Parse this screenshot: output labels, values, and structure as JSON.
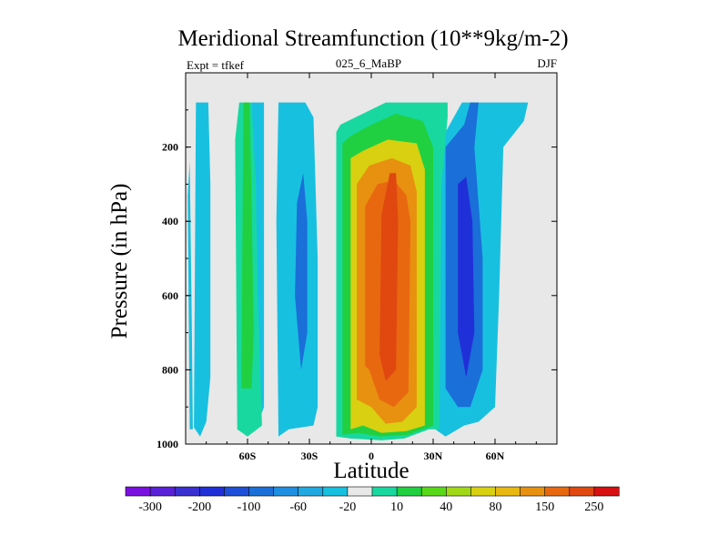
{
  "chart_data": {
    "type": "contour",
    "title": "Meridional Streamfunction (10**9kg/m-2)",
    "left_label": "Expt = tfkef",
    "center_label": "025_6_MaBP",
    "right_label": "DJF",
    "xlabel": "Latitude",
    "ylabel": "Pressure (in hPa)",
    "xlim": [
      -90,
      90
    ],
    "ylim": [
      1000,
      0
    ],
    "x_ticks": [
      {
        "value": -60,
        "label": "60S"
      },
      {
        "value": -30,
        "label": "30S"
      },
      {
        "value": 0,
        "label": "0"
      },
      {
        "value": 30,
        "label": "30N"
      },
      {
        "value": 60,
        "label": "60N"
      }
    ],
    "y_ticks": [
      {
        "value": 200,
        "label": "200"
      },
      {
        "value": 400,
        "label": "400"
      },
      {
        "value": 600,
        "label": "600"
      },
      {
        "value": 800,
        "label": "800"
      },
      {
        "value": 1000,
        "label": "1000"
      }
    ],
    "missing_color": "#e8e8e8",
    "colorbar": {
      "colors": [
        "#7a10e0",
        "#5a20d8",
        "#3a2fd0",
        "#2030d8",
        "#1e4fd8",
        "#1a6fd8",
        "#1e8fe0",
        "#20a8e0",
        "#18c0e0",
        "#e8e8e8",
        "#18d8a0",
        "#20d040",
        "#58d818",
        "#a0d818",
        "#d8d010",
        "#e8b810",
        "#e89010",
        "#e86810",
        "#e04810",
        "#d81010"
      ],
      "labels": [
        "-300",
        "-200",
        "-100",
        "-60",
        "-20",
        "10",
        "40",
        "80",
        "150",
        "250"
      ]
    },
    "regions": [
      {
        "level": "-20",
        "points": [
          [
            -86,
            955
          ],
          [
            -85,
            80
          ],
          [
            -79,
            80
          ],
          [
            -78,
            300
          ],
          [
            -78,
            820
          ],
          [
            -80,
            940
          ],
          [
            -83,
            980
          ]
        ]
      },
      {
        "level": "-20",
        "points": [
          [
            -88,
            960
          ],
          [
            -89,
            330
          ],
          [
            -88,
            240
          ],
          [
            -87,
            680
          ],
          [
            -86.5,
            960
          ]
        ]
      },
      {
        "level": "-20",
        "points": [
          [
            -59,
            860
          ],
          [
            -60,
            600
          ],
          [
            -58,
            80
          ],
          [
            -52,
            80
          ],
          [
            -52,
            900
          ],
          [
            -56,
            960
          ]
        ]
      },
      {
        "level": "-20",
        "points": [
          [
            -45,
            980
          ],
          [
            -46,
            400
          ],
          [
            -45,
            80
          ],
          [
            -32,
            80
          ],
          [
            -28,
            120
          ],
          [
            -26,
            500
          ],
          [
            -26,
            900
          ],
          [
            -28,
            950
          ],
          [
            -40,
            960
          ]
        ]
      },
      {
        "level": "-20",
        "points": [
          [
            31,
            960
          ],
          [
            32,
            200
          ],
          [
            44,
            80
          ],
          [
            76,
            80
          ],
          [
            74,
            130
          ],
          [
            64,
            200
          ],
          [
            62,
            600
          ],
          [
            60,
            900
          ],
          [
            52,
            940
          ],
          [
            45,
            950
          ],
          [
            36,
            980
          ]
        ]
      },
      {
        "level": "-60",
        "points": [
          [
            -37,
            600
          ],
          [
            -36,
            350
          ],
          [
            -33,
            270
          ],
          [
            -31,
            400
          ],
          [
            -31,
            700
          ],
          [
            -34,
            800
          ]
        ]
      },
      {
        "level": "-60",
        "points": [
          [
            36,
            850
          ],
          [
            36,
            200
          ],
          [
            45,
            140
          ],
          [
            48,
            80
          ],
          [
            52,
            80
          ],
          [
            50,
            200
          ],
          [
            54,
            500
          ],
          [
            54,
            800
          ],
          [
            48,
            900
          ],
          [
            42,
            900
          ]
        ]
      },
      {
        "level": "-100",
        "points": [
          [
            42,
            700
          ],
          [
            42,
            300
          ],
          [
            46,
            280
          ],
          [
            49,
            400
          ],
          [
            50,
            700
          ],
          [
            46,
            820
          ]
        ]
      },
      {
        "level": "10",
        "points": [
          [
            -65,
            960
          ],
          [
            -66,
            180
          ],
          [
            -64,
            80
          ],
          [
            -58,
            80
          ],
          [
            -56,
            300
          ],
          [
            -55,
            600
          ],
          [
            -53,
            950
          ],
          [
            -60,
            980
          ]
        ]
      },
      {
        "level": "10",
        "points": [
          [
            -17,
            980
          ],
          [
            -17,
            160
          ],
          [
            -15,
            140
          ],
          [
            7,
            80
          ],
          [
            37,
            80
          ],
          [
            37,
            120
          ],
          [
            34,
            300
          ],
          [
            33,
            960
          ],
          [
            28,
            960
          ],
          [
            16,
            985
          ],
          [
            5,
            990
          ],
          [
            -10,
            985
          ]
        ]
      },
      {
        "level": "40",
        "points": [
          [
            -63,
            850
          ],
          [
            -62,
            80
          ],
          [
            -59,
            80
          ],
          [
            -58,
            350
          ],
          [
            -57,
            700
          ],
          [
            -58,
            850
          ]
        ]
      },
      {
        "level": "40",
        "points": [
          [
            -14,
            975
          ],
          [
            -14,
            190
          ],
          [
            -10,
            170
          ],
          [
            0,
            140
          ],
          [
            12,
            110
          ],
          [
            25,
            130
          ],
          [
            30,
            200
          ],
          [
            30,
            950
          ],
          [
            18,
            975
          ],
          [
            4,
            980
          ],
          [
            -6,
            970
          ]
        ]
      },
      {
        "level": "80",
        "points": [
          [
            -10,
            960
          ],
          [
            -10,
            230
          ],
          [
            -4,
            210
          ],
          [
            8,
            180
          ],
          [
            22,
            190
          ],
          [
            26,
            260
          ],
          [
            26,
            950
          ],
          [
            17,
            965
          ],
          [
            5,
            970
          ],
          [
            -4,
            950
          ]
        ]
      },
      {
        "level": "150",
        "points": [
          [
            -7,
            880
          ],
          [
            -7,
            300
          ],
          [
            -1,
            250
          ],
          [
            10,
            230
          ],
          [
            19,
            250
          ],
          [
            22,
            320
          ],
          [
            22,
            900
          ],
          [
            15,
            940
          ],
          [
            7,
            945
          ],
          [
            0,
            900
          ]
        ]
      },
      {
        "level": "250",
        "points": [
          [
            -3,
            790
          ],
          [
            -3,
            360
          ],
          [
            3,
            300
          ],
          [
            11,
            290
          ],
          [
            17,
            330
          ],
          [
            19,
            400
          ],
          [
            18,
            860
          ],
          [
            11,
            900
          ],
          [
            4,
            880
          ],
          [
            -1,
            800
          ]
        ]
      },
      {
        "level": "250+",
        "points": [
          [
            4,
            760
          ],
          [
            5,
            380
          ],
          [
            9,
            270
          ],
          [
            12,
            270
          ],
          [
            13,
            400
          ],
          [
            12,
            800
          ],
          [
            7,
            830
          ]
        ]
      }
    ]
  }
}
